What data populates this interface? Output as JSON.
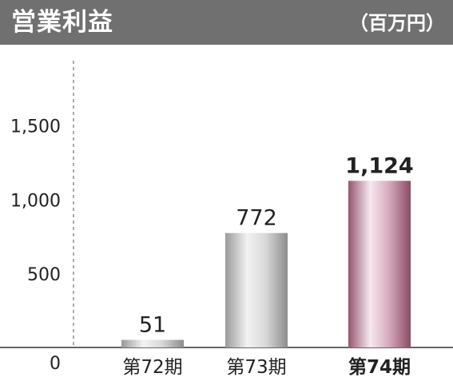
{
  "header": {
    "title": "営業利益",
    "unit": "（百万円）",
    "background": "#707070"
  },
  "chart_data": {
    "type": "bar",
    "title": "営業利益",
    "unit": "（百万円）",
    "categories": [
      "第72期",
      "第73期",
      "第74期"
    ],
    "values": [
      51,
      772,
      1124
    ],
    "value_labels": [
      "51",
      "772",
      "1,124"
    ],
    "highlight_index": 2,
    "y_ticks": [
      0,
      500,
      1000,
      1500
    ],
    "y_tick_labels": [
      "0",
      "500",
      "1,000",
      "1,500"
    ],
    "ylim": [
      0,
      1750
    ],
    "grid": false,
    "colors": {
      "gray_bar": "#b8b8b8",
      "highlight_bar": "#a86a86",
      "axis": "#333333",
      "dashed_axis": "#555555"
    }
  }
}
